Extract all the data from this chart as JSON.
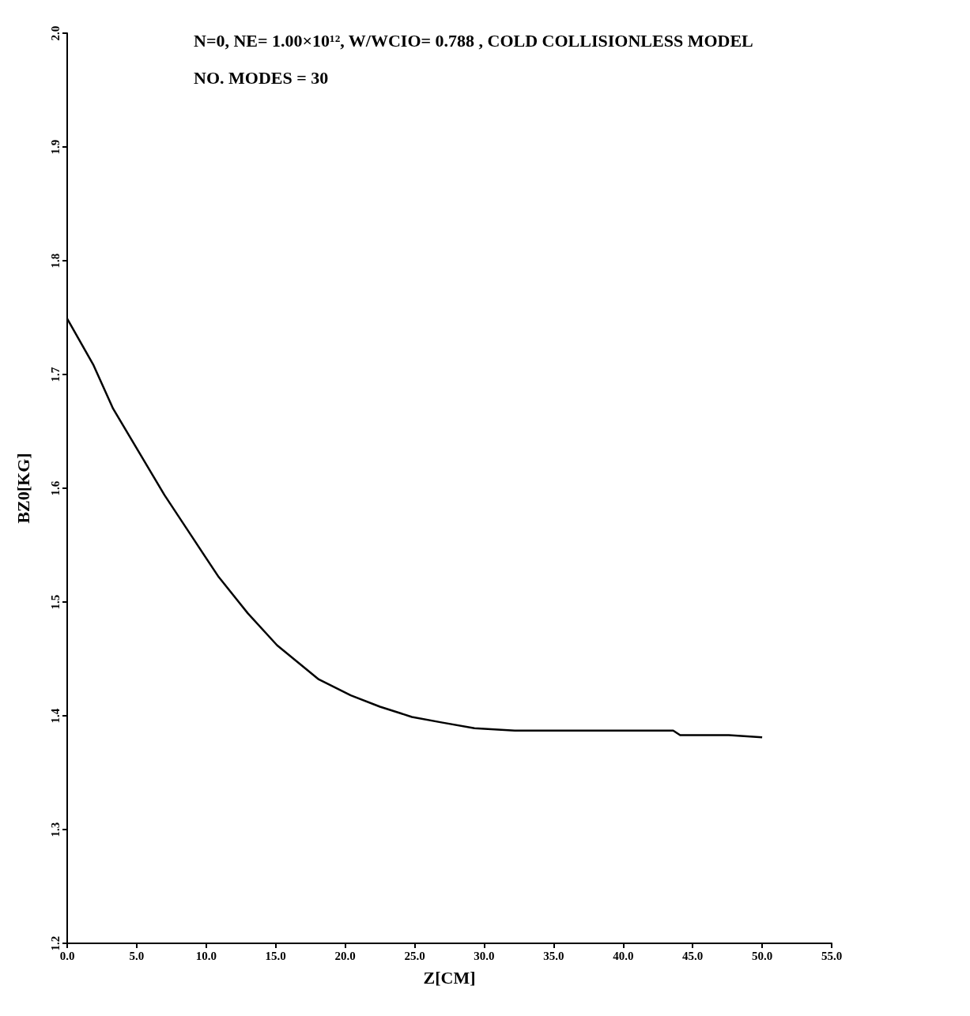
{
  "chart_data": {
    "type": "line",
    "title": "N=0, NE= 1.00×10¹², W/WCIO= 0.788 , COLD COLLISIONLESS MODEL",
    "subtitle": "NO. MODES = 30",
    "xlabel": "Z[CM]",
    "ylabel": "BZ0[KG]",
    "x": [
      0,
      1.9,
      3.3,
      5.2,
      7.0,
      9.0,
      10.9,
      13.0,
      15.1,
      18.1,
      20.4,
      22.5,
      24.8,
      27.0,
      29.3,
      32.2,
      37.9,
      43.6,
      44.1,
      47.6,
      50.0
    ],
    "series": [
      {
        "color": "#000000",
        "values": [
          1.749,
          1.708,
          1.67,
          1.631,
          1.594,
          1.557,
          1.522,
          1.49,
          1.462,
          1.432,
          1.418,
          1.408,
          1.399,
          1.394,
          1.389,
          1.387,
          1.387,
          1.387,
          1.383,
          1.383,
          1.381
        ]
      }
    ],
    "xlim": [
      0,
      55
    ],
    "ylim": [
      1.2,
      2.0
    ],
    "xticks": [
      {
        "value": 0,
        "label": "0.0"
      },
      {
        "value": 5,
        "label": "5.0"
      },
      {
        "value": 10,
        "label": "10.0"
      },
      {
        "value": 15,
        "label": "15.0"
      },
      {
        "value": 20,
        "label": "20.0"
      },
      {
        "value": 25,
        "label": "25.0"
      },
      {
        "value": 30,
        "label": "30.0"
      },
      {
        "value": 35,
        "label": "35.0"
      },
      {
        "value": 40,
        "label": "40.0"
      },
      {
        "value": 45,
        "label": "45.0"
      },
      {
        "value": 50,
        "label": "50.0"
      },
      {
        "value": 55,
        "label": "55.0"
      }
    ],
    "yticks": [
      1.2,
      1.3,
      1.4,
      1.5,
      1.6,
      1.7,
      1.8,
      1.9,
      {
        "value": 2,
        "label": "2.0"
      }
    ],
    "grid": false,
    "marker": "none",
    "line_style": "solid"
  }
}
